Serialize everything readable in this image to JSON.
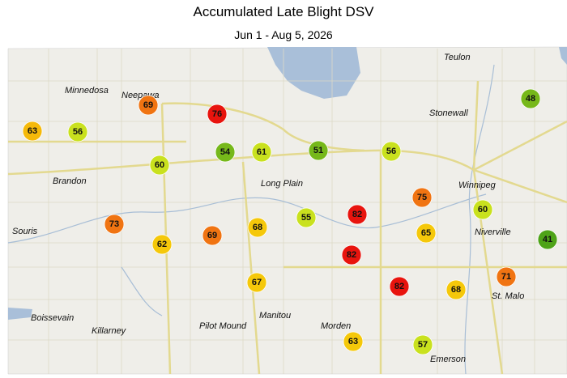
{
  "title": "Accumulated Late Blight DSV",
  "subtitle": "Jun 1 - Aug 5, 2026",
  "towns": [
    "Teulon",
    "Minnedosa",
    "Neepawa",
    "Stonewall",
    "Winnipeg",
    "Brandon",
    "Long Plain",
    "Souris",
    "Niverville",
    "St. Malo",
    "Boissevain",
    "Killarney",
    "Pilot Mound",
    "Manitou",
    "Morden",
    "Emerson"
  ],
  "stations": [
    {
      "value": 63,
      "color": "#f5b90a"
    },
    {
      "value": 56,
      "color": "#c9e11e"
    },
    {
      "value": 69,
      "color": "#f07412"
    },
    {
      "value": 76,
      "color": "#e8140e"
    },
    {
      "value": 54,
      "color": "#76b81a"
    },
    {
      "value": 61,
      "color": "#c9e11e"
    },
    {
      "value": 51,
      "color": "#76b81a"
    },
    {
      "value": 56,
      "color": "#c9e11e"
    },
    {
      "value": 48,
      "color": "#76b81a"
    },
    {
      "value": 60,
      "color": "#c9e11e"
    },
    {
      "value": 75,
      "color": "#f07412"
    },
    {
      "value": 60,
      "color": "#c9e11e"
    },
    {
      "value": 41,
      "color": "#4ea318"
    },
    {
      "value": 73,
      "color": "#f07412"
    },
    {
      "value": 62,
      "color": "#f5c80a"
    },
    {
      "value": 69,
      "color": "#f07412"
    },
    {
      "value": 68,
      "color": "#f5c80a"
    },
    {
      "value": 55,
      "color": "#c9e11e"
    },
    {
      "value": 82,
      "color": "#e8140e"
    },
    {
      "value": 65,
      "color": "#f5c80a"
    },
    {
      "value": 82,
      "color": "#e8140e"
    },
    {
      "value": 67,
      "color": "#f5c80a"
    },
    {
      "value": 82,
      "color": "#e8140e"
    },
    {
      "value": 68,
      "color": "#f5c80a"
    },
    {
      "value": 71,
      "color": "#f07412"
    },
    {
      "value": 63,
      "color": "#f5c80a"
    },
    {
      "value": 57,
      "color": "#c9e11e"
    }
  ]
}
